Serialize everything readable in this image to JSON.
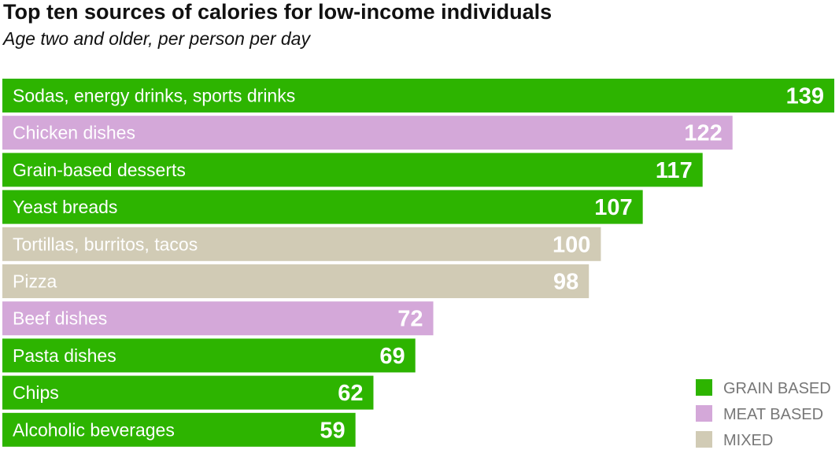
{
  "title": "Top ten sources of calories for low-income individuals",
  "subtitle": "Age two and older, per person per day",
  "legend": [
    {
      "category": "grain",
      "label": "GRAIN BASED",
      "color": "#2db400"
    },
    {
      "category": "meat",
      "label": "MEAT BASED",
      "color": "#d4a8d9"
    },
    {
      "category": "mixed",
      "label": "MIXED",
      "color": "#d1cbb5"
    }
  ],
  "chart_data": {
    "type": "bar",
    "orientation": "horizontal",
    "title": "Top ten sources of calories for low-income individuals",
    "subtitle": "Age two and older, per person per day",
    "xlim": [
      0,
      140
    ],
    "categories": [
      "Sodas, energy drinks, sports drinks",
      "Chicken dishes",
      "Grain-based desserts",
      "Yeast breads",
      "Tortillas, burritos, tacos",
      "Pizza",
      "Beef dishes",
      "Pasta dishes",
      "Chips",
      "Alcoholic beverages"
    ],
    "values": [
      139,
      122,
      117,
      107,
      100,
      98,
      72,
      69,
      62,
      59
    ],
    "groups": [
      "grain",
      "meat",
      "grain",
      "grain",
      "mixed",
      "mixed",
      "meat",
      "grain",
      "grain",
      "grain"
    ],
    "value_labels": [
      "139",
      "122",
      "117",
      "107",
      "100",
      "98",
      "72",
      "69",
      "62",
      "59"
    ],
    "grid": false,
    "legend_position": "bottom-right"
  }
}
